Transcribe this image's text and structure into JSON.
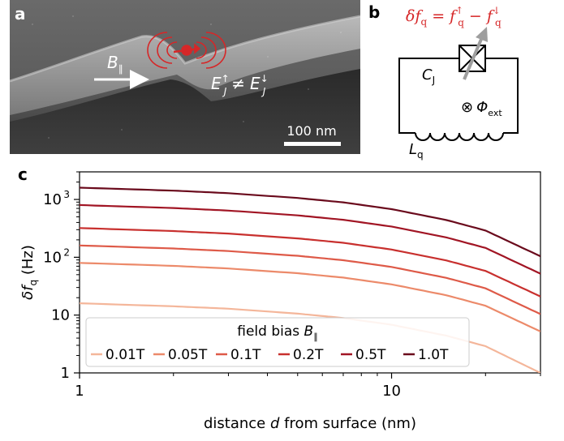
{
  "panels": {
    "a": {
      "letter": "a",
      "field_label": "B",
      "field_sub": "∥",
      "energy_lhs": "E",
      "energy_lhs_sub": "J",
      "energy_lhs_sup": "↑",
      "energy_neq": "≠",
      "energy_rhs": "E",
      "energy_rhs_sub": "J",
      "energy_rhs_sup": "↓",
      "scale_bar": "100 nm"
    },
    "b": {
      "letter": "b",
      "formula_delta": "δ",
      "formula_f": "f",
      "formula_sub": "q",
      "formula_eq": "=",
      "formula_f1": "f",
      "formula_f1_sub": "q",
      "formula_f1_sup": "↑",
      "formula_minus": "−",
      "formula_f2": "f",
      "formula_f2_sub": "q",
      "formula_f2_sup": "↓",
      "cap_label": "C",
      "cap_sub": "J",
      "flux_symbol": "⊗",
      "flux_label": "Φ",
      "flux_sub": "ext",
      "ind_label": "L",
      "ind_sub": "q",
      "formula_color": "#d62728"
    },
    "c": {
      "letter": "c"
    }
  },
  "chart_data": {
    "type": "line",
    "xscale": "log",
    "yscale": "log",
    "xlim": [
      1,
      30
    ],
    "ylim": [
      1,
      3000
    ],
    "xticks": [
      {
        "value": 1,
        "label": "1"
      },
      {
        "value": 10,
        "label": "10"
      }
    ],
    "yticks": [
      {
        "value": 1,
        "label": "1"
      },
      {
        "value": 10,
        "label": "10"
      },
      {
        "value": 100,
        "label": "10",
        "sup": "2"
      },
      {
        "value": 1000,
        "label": "10",
        "sup": "3"
      }
    ],
    "xlabel_pre": "distance ",
    "xlabel_var": "d",
    "xlabel_post": " from surface (nm)",
    "ylabel_delta": "δ",
    "ylabel_var": "f",
    "ylabel_sub": "q",
    "ylabel_unit": " (Hz)",
    "legend": {
      "title": "field bias ",
      "title_var": "B",
      "title_sub": "∥",
      "placement": "lower-left"
    },
    "series": [
      {
        "name": "0.01T",
        "color": "#f4b69a",
        "x": [
          1,
          2,
          3,
          5,
          7,
          10,
          15,
          20,
          30
        ],
        "y": [
          16,
          14.2,
          12.9,
          10.6,
          8.9,
          6.8,
          4.4,
          2.9,
          1.0
        ]
      },
      {
        "name": "0.05T",
        "color": "#ec8a6a",
        "x": [
          1,
          2,
          3,
          5,
          7,
          10,
          15,
          20,
          30
        ],
        "y": [
          80,
          71,
          64,
          53,
          44.5,
          34,
          22,
          14.5,
          5.2
        ]
      },
      {
        "name": "0.1T",
        "color": "#de5a48",
        "x": [
          1,
          2,
          3,
          5,
          7,
          10,
          15,
          20,
          30
        ],
        "y": [
          160,
          142,
          128,
          106,
          89,
          68,
          44,
          29,
          10.4
        ]
      },
      {
        "name": "0.2T",
        "color": "#c8302e",
        "x": [
          1,
          2,
          3,
          5,
          7,
          10,
          15,
          20,
          30
        ],
        "y": [
          320,
          284,
          257,
          212,
          178,
          136,
          88,
          58,
          21
        ]
      },
      {
        "name": "0.5T",
        "color": "#a11524",
        "x": [
          1,
          2,
          3,
          5,
          7,
          10,
          15,
          20,
          30
        ],
        "y": [
          800,
          710,
          642,
          530,
          445,
          340,
          220,
          145,
          52
        ]
      },
      {
        "name": "1.0T",
        "color": "#6a0a1c",
        "x": [
          1,
          2,
          3,
          5,
          7,
          10,
          15,
          20,
          30
        ],
        "y": [
          1600,
          1420,
          1284,
          1060,
          890,
          680,
          440,
          290,
          104
        ]
      }
    ]
  }
}
